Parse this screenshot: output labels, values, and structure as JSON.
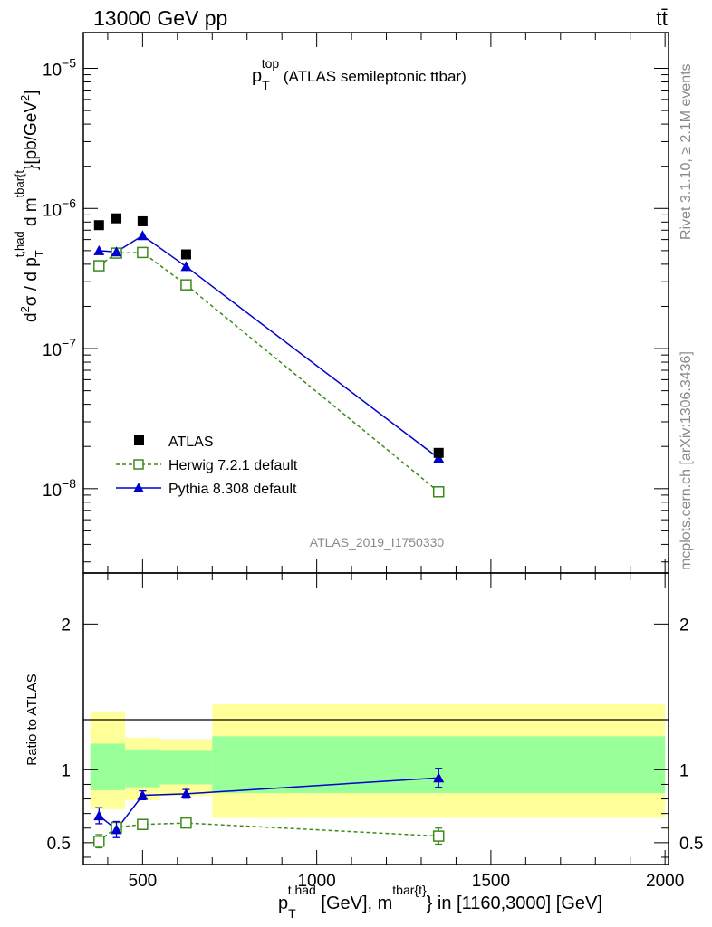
{
  "header": {
    "left": "13000 GeV pp",
    "right": "tt̄"
  },
  "side_labels": {
    "rivet": "Rivet 3.1.10, ≥ 2.1M events",
    "mcplots": "mcplots.cern.ch [arXiv:1306.3436]"
  },
  "analysis_id": "ATLAS_2019_I1750330",
  "colors": {
    "atlas": "#000000",
    "herwig": "#3a8a1a",
    "pythia": "#0000cc",
    "band_stat": "#99ff99",
    "band_total": "#ffff99"
  },
  "chart_data": [
    {
      "type": "scatter",
      "title_main": "p",
      "title_sub": "T",
      "title_sup": "top",
      "title_rest": " (ATLAS semileptonic ttbar)",
      "ylabel": "d²σ / d p_T^{t,had} d m^{tbar{t}}[pb/GeV²]",
      "yscale": "log",
      "ylim": [
        2.5e-09,
        1.8e-05
      ],
      "xlim": [
        330,
        2010
      ],
      "yticks": [
        {
          "v": 1e-08,
          "base": "10",
          "exp": "−8"
        },
        {
          "v": 1e-07,
          "base": "10",
          "exp": "−7"
        },
        {
          "v": 1e-06,
          "base": "10",
          "exp": "−6"
        },
        {
          "v": 1e-05,
          "base": "10",
          "exp": "−5"
        }
      ],
      "legend": [
        "ATLAS",
        "Herwig 7.2.1 default",
        "Pythia 8.308 default"
      ],
      "series": [
        {
          "name": "ATLAS",
          "x": [
            375,
            425,
            500,
            625,
            1350
          ],
          "y": [
            7.6e-07,
            8.5e-07,
            8.1e-07,
            4.7e-07,
            1.8e-08
          ]
        },
        {
          "name": "Herwig 7.2.1 default",
          "x": [
            375,
            425,
            500,
            625,
            1350
          ],
          "y": [
            3.9e-07,
            4.8e-07,
            4.85e-07,
            2.85e-07,
            9.5e-09
          ]
        },
        {
          "name": "Pythia 8.308 default",
          "x": [
            375,
            425,
            500,
            625,
            1350
          ],
          "y": [
            5e-07,
            4.9e-07,
            6.4e-07,
            3.85e-07,
            1.65e-08
          ]
        }
      ]
    },
    {
      "type": "scatter",
      "ylabel": "Ratio to ATLAS",
      "xlabel_main": "p",
      "xlabel_sub": "T",
      "xlabel_sup": "t,had",
      "xlabel_rest": " [GeV], m",
      "xlabel_sup2": "tbar{t}",
      "xlabel_end": "} in [1160,3000] [GeV]",
      "ylim": [
        0.35,
        2.35
      ],
      "xlim": [
        330,
        2010
      ],
      "yticks": [
        0.5,
        1,
        2
      ],
      "ytick_labels": [
        "0.5",
        "1",
        "2"
      ],
      "xticks": [
        500,
        1000,
        1500,
        2000
      ],
      "xtick_labels": [
        "500",
        "1000",
        "1500",
        "2000"
      ],
      "bins": [
        {
          "lo": 350,
          "hi": 450,
          "stat": [
            0.86,
            1.18
          ],
          "total": [
            0.73,
            1.4
          ]
        },
        {
          "lo": 450,
          "hi": 550,
          "stat": [
            0.88,
            1.14
          ],
          "total": [
            0.79,
            1.22
          ]
        },
        {
          "lo": 550,
          "hi": 700,
          "stat": [
            0.9,
            1.13
          ],
          "total": [
            0.82,
            1.21
          ]
        },
        {
          "lo": 700,
          "hi": 2000,
          "stat": [
            0.84,
            1.23
          ],
          "total": [
            0.67,
            1.45
          ]
        }
      ],
      "series": [
        {
          "name": "Herwig 7.2.1 default",
          "x": [
            375,
            425,
            500,
            625,
            1350
          ],
          "y": [
            0.51,
            0.605,
            0.625,
            0.635,
            0.545
          ],
          "err": [
            0.045,
            0.035,
            0.02,
            0.02,
            0.055
          ]
        },
        {
          "name": "Pythia 8.308 default",
          "x": [
            375,
            425,
            500,
            625,
            1350
          ],
          "y": [
            0.685,
            0.59,
            0.825,
            0.835,
            0.945
          ],
          "err": [
            0.055,
            0.055,
            0.03,
            0.03,
            0.065
          ]
        }
      ]
    }
  ]
}
